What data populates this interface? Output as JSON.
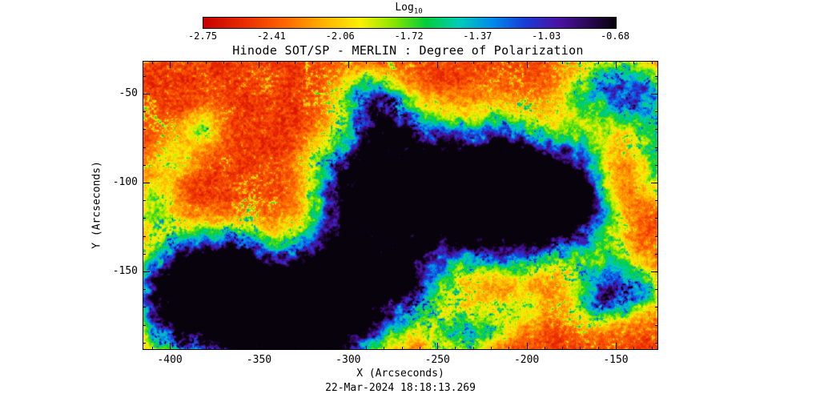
{
  "title": "Hinode SOT/SP - MERLIN : Degree of Polarization",
  "timestamp": "22-Mar-2024 18:18:13.269",
  "colorbar": {
    "label": "Log",
    "label_sub": "10",
    "ticks": [
      "-2.75",
      "-2.41",
      "-2.06",
      "-1.72",
      "-1.37",
      "-1.03",
      "-0.68"
    ]
  },
  "axes": {
    "xlabel": "X (Arcseconds)",
    "ylabel": "Y (Arcseconds)",
    "x_tick_labels": [
      "-400",
      "-350",
      "-300",
      "-250",
      "-200",
      "-150"
    ],
    "y_tick_labels": [
      "-50",
      "-100",
      "-150"
    ]
  },
  "chart_data": {
    "type": "heatmap",
    "title": "Hinode SOT/SP - MERLIN : Degree of Polarization",
    "colorbar_scale": "Log10 degree of polarization",
    "colorbar_ticks": [
      -2.75,
      -2.41,
      -2.06,
      -1.72,
      -1.37,
      -1.03,
      -0.68
    ],
    "colorbar_range": [
      -2.75,
      -0.68
    ],
    "xlabel": "X (Arcseconds)",
    "ylabel": "Y (Arcseconds)",
    "x_range": [
      -415.3,
      -126.2
    ],
    "y_range": [
      -194.1,
      -31.5
    ],
    "x_major_ticks": [
      -400,
      -350,
      -300,
      -250,
      -200,
      -150
    ],
    "y_major_ticks": [
      -50,
      -100,
      -150
    ],
    "minor_tick_step": 10,
    "observation_time": "22-Mar-2024 18:18:13.269",
    "legend_position": "top colorbar",
    "grid": false,
    "description": "Quiet-Sun background at low log10 polarization (red/orange granular speckle with yellow-green network) and sunspot active regions at high polarization (green/cyan rims, blue penumbrae, dark purple-black umbral cores): a large complex in the lower-left quadrant, a ring-shaped complex upper-center-right, and small patches at top-right and bottom-right.",
    "colormap_stops": [
      [
        0.0,
        200,
        0,
        0
      ],
      [
        0.1,
        235,
        45,
        0
      ],
      [
        0.2,
        255,
        105,
        0
      ],
      [
        0.3,
        255,
        185,
        0
      ],
      [
        0.38,
        252,
        240,
        6
      ],
      [
        0.46,
        140,
        230,
        0
      ],
      [
        0.54,
        0,
        205,
        60
      ],
      [
        0.62,
        0,
        205,
        185
      ],
      [
        0.7,
        0,
        140,
        235
      ],
      [
        0.78,
        25,
        60,
        215
      ],
      [
        0.86,
        75,
        20,
        165
      ],
      [
        0.93,
        45,
        8,
        90
      ],
      [
        1.0,
        8,
        2,
        12
      ]
    ],
    "active_regions": [
      [
        0.116,
        0.873,
        0.07,
        0.85
      ],
      [
        0.186,
        0.776,
        0.062,
        0.8
      ],
      [
        0.256,
        0.853,
        0.065,
        0.92
      ],
      [
        0.078,
        0.748,
        0.054,
        0.6
      ],
      [
        0.326,
        0.845,
        0.07,
        0.8
      ],
      [
        0.411,
        0.748,
        0.062,
        0.65
      ],
      [
        0.233,
        0.956,
        0.062,
        0.7
      ],
      [
        0.357,
        0.942,
        0.059,
        0.7
      ],
      [
        0.466,
        0.803,
        0.07,
        0.6
      ],
      [
        0.512,
        0.72,
        0.054,
        0.5
      ],
      [
        0.148,
        0.693,
        0.047,
        0.45
      ],
      [
        0.047,
        0.831,
        0.054,
        0.55
      ],
      [
        0.419,
        0.554,
        0.054,
        0.45
      ],
      [
        0.373,
        0.637,
        0.047,
        0.4
      ],
      [
        0.416,
        0.393,
        0.059,
        0.85
      ],
      [
        0.466,
        0.471,
        0.062,
        0.6
      ],
      [
        0.571,
        0.476,
        0.054,
        0.75
      ],
      [
        0.621,
        0.465,
        0.05,
        0.7
      ],
      [
        0.688,
        0.438,
        0.056,
        0.8
      ],
      [
        0.736,
        0.416,
        0.05,
        0.7
      ],
      [
        0.784,
        0.485,
        0.054,
        0.75
      ],
      [
        0.815,
        0.452,
        0.047,
        0.6
      ],
      [
        0.528,
        0.332,
        0.054,
        0.5
      ],
      [
        0.613,
        0.305,
        0.062,
        0.45
      ],
      [
        0.707,
        0.291,
        0.054,
        0.5
      ],
      [
        0.481,
        0.263,
        0.047,
        0.45
      ],
      [
        0.839,
        0.332,
        0.047,
        0.5
      ],
      [
        0.87,
        0.54,
        0.047,
        0.5
      ],
      [
        0.745,
        0.582,
        0.062,
        0.45
      ],
      [
        0.652,
        0.568,
        0.062,
        0.5
      ],
      [
        0.559,
        0.596,
        0.054,
        0.45
      ],
      [
        0.466,
        0.166,
        0.043,
        0.5
      ],
      [
        0.419,
        0.111,
        0.034,
        0.4
      ],
      [
        0.877,
        0.125,
        0.047,
        0.55
      ],
      [
        0.95,
        0.078,
        0.04,
        0.5
      ],
      [
        0.984,
        0.172,
        0.037,
        0.5
      ],
      [
        0.995,
        0.305,
        0.031,
        0.4
      ],
      [
        0.994,
        0.416,
        0.028,
        0.35
      ],
      [
        0.913,
        0.753,
        0.047,
        0.55
      ],
      [
        0.879,
        0.825,
        0.037,
        0.45
      ],
      [
        0.963,
        0.803,
        0.031,
        0.4
      ],
      [
        0.016,
        0.499,
        0.039,
        0.4
      ],
      [
        0.116,
        0.235,
        0.028,
        0.35
      ],
      [
        0.062,
        0.332,
        0.031,
        0.3
      ],
      [
        0.668,
        0.914,
        0.039,
        0.35
      ],
      [
        0.745,
        0.859,
        0.031,
        0.3
      ],
      [
        0.606,
        0.956,
        0.039,
        0.4
      ],
      [
        0.702,
        0.62,
        0.039,
        0.35
      ],
      [
        0.81,
        0.593,
        0.031,
        0.3
      ]
    ]
  }
}
